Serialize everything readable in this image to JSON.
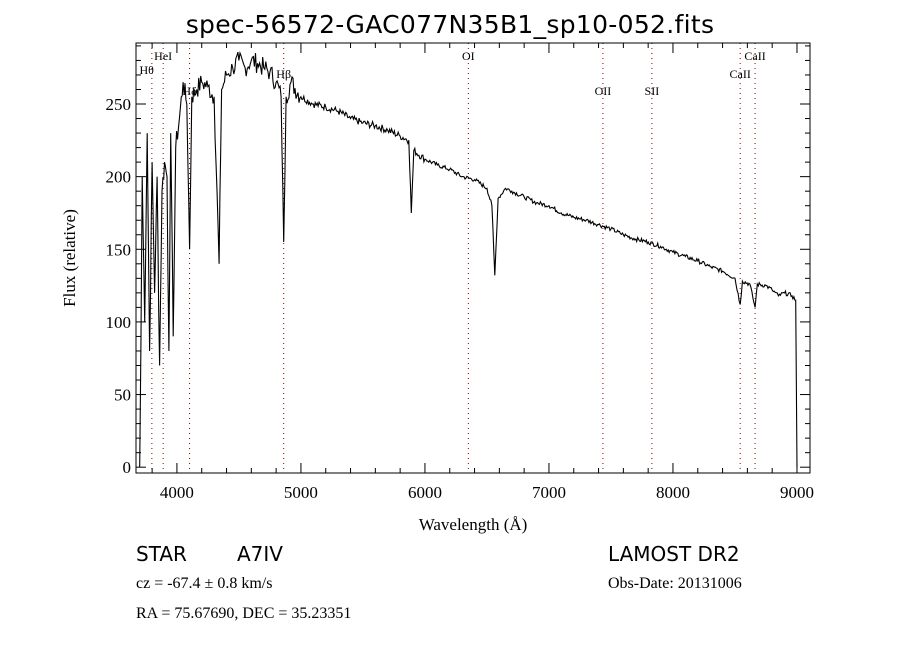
{
  "chart_data": {
    "type": "line",
    "title": "spec-56572-GAC077N35B1_sp10-052.fits",
    "xlabel": "Wavelength (Å)",
    "ylabel": "Flux (relative)",
    "xlim": [
      3670,
      9105
    ],
    "ylim": [
      -4,
      292
    ],
    "x_ticks": [
      4000,
      5000,
      6000,
      7000,
      8000,
      9000
    ],
    "x_tick_labels": [
      "4000",
      "5000",
      "6000",
      "7000",
      "8000",
      "9000"
    ],
    "y_ticks": [
      0,
      50,
      100,
      150,
      200,
      250
    ],
    "y_tick_labels": [
      "0",
      "50",
      "100",
      "150",
      "200",
      "250"
    ],
    "grid": false,
    "series": [
      {
        "name": "spectrum",
        "x": [
          3700,
          3710,
          3720,
          3740,
          3760,
          3780,
          3800,
          3820,
          3840,
          3860,
          3880,
          3900,
          3920,
          3935,
          3950,
          3970,
          3990,
          4020,
          4050,
          4080,
          4102,
          4120,
          4160,
          4200,
          4250,
          4300,
          4340,
          4360,
          4400,
          4450,
          4500,
          4550,
          4600,
          4650,
          4700,
          4750,
          4800,
          4840,
          4861,
          4880,
          4920,
          5000,
          5100,
          5200,
          5300,
          5400,
          5500,
          5600,
          5700,
          5800,
          5870,
          5890,
          5910,
          6000,
          6100,
          6200,
          6300,
          6400,
          6500,
          6540,
          6563,
          6590,
          6650,
          6700,
          6800,
          6900,
          7000,
          7100,
          7200,
          7300,
          7400,
          7500,
          7600,
          7700,
          7800,
          7900,
          8000,
          8100,
          8200,
          8300,
          8400,
          8500,
          8542,
          8560,
          8620,
          8662,
          8680,
          8750,
          8800,
          8850,
          8900,
          8960,
          8990,
          9000
        ],
        "y": [
          0,
          90,
          200,
          100,
          230,
          80,
          210,
          120,
          200,
          70,
          190,
          210,
          200,
          80,
          230,
          90,
          220,
          240,
          265,
          250,
          150,
          255,
          260,
          265,
          262,
          255,
          140,
          260,
          270,
          275,
          280,
          275,
          280,
          278,
          275,
          272,
          265,
          255,
          155,
          255,
          265,
          255,
          250,
          248,
          245,
          240,
          237,
          235,
          232,
          228,
          225,
          175,
          218,
          212,
          208,
          205,
          200,
          198,
          192,
          180,
          132,
          185,
          192,
          190,
          186,
          182,
          180,
          175,
          172,
          170,
          167,
          164,
          160,
          157,
          155,
          152,
          148,
          145,
          142,
          138,
          135,
          130,
          112,
          128,
          126,
          110,
          126,
          125,
          122,
          118,
          120,
          118,
          115,
          0
        ]
      }
    ],
    "line_markers": [
      {
        "label": "Hθ",
        "wavelength": 3798
      },
      {
        "label": "HeI",
        "wavelength": 3889
      },
      {
        "label": "Hδ",
        "wavelength": 4102
      },
      {
        "label": "Hβ",
        "wavelength": 4861
      },
      {
        "label": "OI",
        "wavelength": 6350
      },
      {
        "label": "OII",
        "wavelength": 7435
      },
      {
        "label": "SII",
        "wavelength": 7830
      },
      {
        "label": "CaII",
        "wavelength": 8542
      },
      {
        "label": "CaII",
        "wavelength": 8662
      }
    ]
  },
  "info": {
    "object_type": "STAR",
    "subclass": "A7IV",
    "survey": "LAMOST DR2",
    "redshift": "cz = -67.4 ± 0.8 km/s",
    "obs_date": "Obs-Date: 20131006",
    "coords": "RA =  75.67690, DEC =  35.23351"
  },
  "colors": {
    "spectrum": "#000000",
    "marker": "#8b0000",
    "axis": "#000000"
  }
}
